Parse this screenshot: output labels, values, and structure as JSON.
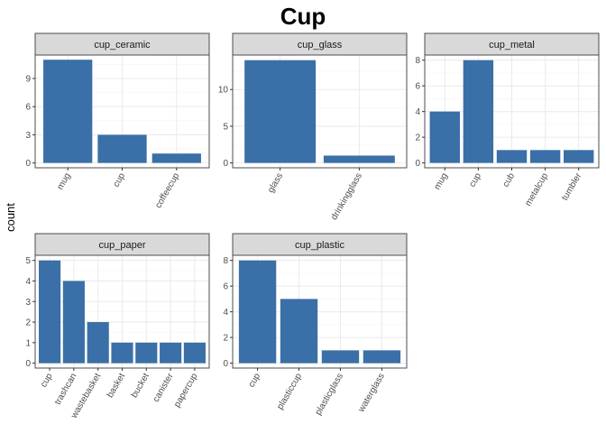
{
  "chart_data": {
    "type": "bar",
    "title": "Cup",
    "ylabel": "count",
    "xlabel": "",
    "bar_color": "#3a6fa8",
    "panel_border_color": "#4d4d4d",
    "strip_fill": "#d9d9d9",
    "grid_major_color": "#ebebeb",
    "grid_minor_color": "#f5f5f5",
    "grid": true,
    "panels": [
      {
        "name": "cup_ceramic",
        "categories": [
          "mug",
          "cup",
          "coffeecup"
        ],
        "values": [
          11,
          3,
          1
        ],
        "ylim": [
          0,
          11.5
        ],
        "yticks": [
          0,
          3,
          6,
          9
        ]
      },
      {
        "name": "cup_glass",
        "categories": [
          "glass",
          "drinkingglass"
        ],
        "values": [
          14,
          1
        ],
        "ylim": [
          0,
          14.7
        ],
        "yticks": [
          0,
          5,
          10
        ]
      },
      {
        "name": "cup_metal",
        "categories": [
          "mug",
          "cup",
          "cub",
          "metalcup",
          "tumbler"
        ],
        "values": [
          4,
          8,
          1,
          1,
          1
        ],
        "ylim": [
          0,
          8.4
        ],
        "yticks": [
          0,
          2,
          4,
          6,
          8
        ]
      },
      {
        "name": "cup_paper",
        "categories": [
          "cup",
          "trashcan",
          "wastebasket",
          "basket",
          "bucket",
          "canister",
          "papercup"
        ],
        "values": [
          5,
          4,
          2,
          1,
          1,
          1,
          1
        ],
        "ylim": [
          0,
          5.25
        ],
        "yticks": [
          0,
          1,
          2,
          3,
          4,
          5
        ]
      },
      {
        "name": "cup_plastic",
        "categories": [
          "cup",
          "plasticcup",
          "plasticglass",
          "waterglass"
        ],
        "values": [
          8,
          5,
          1,
          1
        ],
        "ylim": [
          0,
          8.4
        ],
        "yticks": [
          0,
          2,
          4,
          6,
          8
        ]
      }
    ]
  }
}
